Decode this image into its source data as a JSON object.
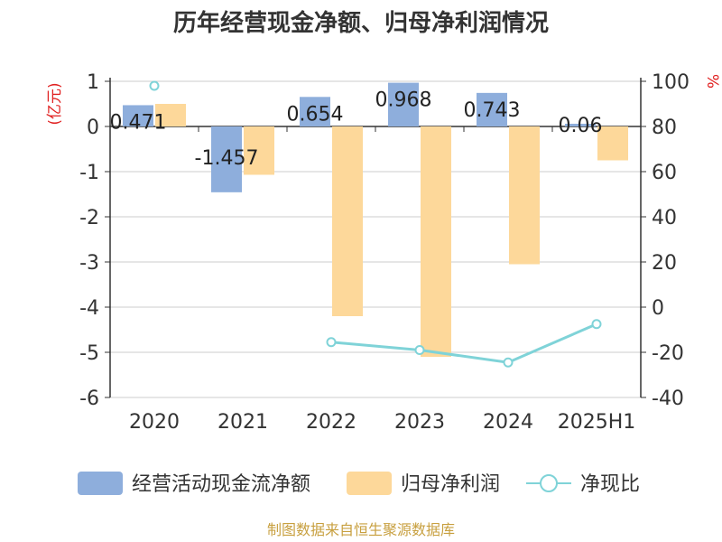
{
  "chart_data": {
    "type": "bar",
    "title": "历年经营现金净额、归母净利润情况",
    "categories": [
      "2020",
      "2021",
      "2022",
      "2023",
      "2024",
      "2025H1"
    ],
    "left_unit": "(亿元)",
    "right_unit": "%",
    "left_ylim": [
      -6,
      1
    ],
    "left_ticks": [
      "1",
      "0",
      "-1",
      "-2",
      "-3",
      "-4",
      "-5",
      "-6"
    ],
    "right_ylim": [
      -40,
      100
    ],
    "right_ticks": [
      "100",
      "80",
      "60",
      "40",
      "20",
      "0",
      "-20",
      "-40"
    ],
    "grid": true,
    "legend_position": "bottom",
    "series": [
      {
        "name": "经营活动现金流净额",
        "type": "bar",
        "axis": "left",
        "color": "#8eaedc",
        "values": [
          0.471,
          -1.457,
          0.654,
          0.968,
          0.743,
          0.06
        ],
        "labels": [
          "0.471",
          "-1.457",
          "0.654",
          "0.968",
          "0.743",
          "0.06"
        ]
      },
      {
        "name": "归母净利润",
        "type": "bar",
        "axis": "left",
        "color": "#fdd89a",
        "values": [
          0.5,
          -1.07,
          -4.2,
          -5.1,
          -3.05,
          -0.75
        ]
      },
      {
        "name": "净现比",
        "type": "line",
        "axis": "right",
        "color": "#7fd3d8",
        "values": [
          98,
          null,
          -15.5,
          -19,
          -24.5,
          -7.5
        ]
      }
    ]
  },
  "footer": {
    "source": "制图数据来自恒生聚源数据库"
  }
}
